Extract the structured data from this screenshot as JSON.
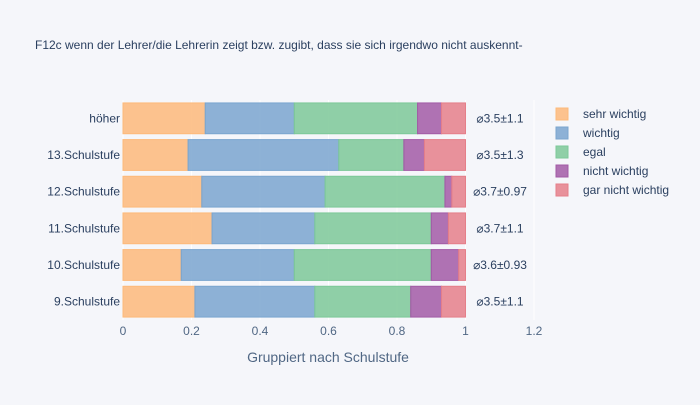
{
  "chart_data": {
    "type": "bar",
    "orientation": "horizontal",
    "barmode": "stack",
    "title": "F12c wenn der Lehrer/die Lehrerin zeigt bzw. zugibt, dass sie sich irgendwo nicht auskennt-",
    "xlabel": "Gruppiert nach Schulstufe",
    "ylabel": "",
    "xlim": [
      0,
      1.2
    ],
    "xticks": [
      0,
      0.2,
      0.4,
      0.6,
      0.8,
      1,
      1.2
    ],
    "xtick_labels": [
      "0",
      "0.2",
      "0.4",
      "0.6",
      "0.8",
      "1",
      "1.2"
    ],
    "grid": true,
    "legend_position": "right",
    "categories": [
      "höher",
      "13.Schulstufe",
      "12.Schulstufe",
      "11.Schulstufe",
      "10.Schulstufe",
      "9.Schulstufe"
    ],
    "series": [
      {
        "name": "sehr wichtig",
        "color": "#fdb97a",
        "values": [
          0.24,
          0.19,
          0.23,
          0.26,
          0.17,
          0.21
        ]
      },
      {
        "name": "wichtig",
        "color": "#7aa5cf",
        "values": [
          0.26,
          0.44,
          0.36,
          0.3,
          0.33,
          0.35
        ]
      },
      {
        "name": "egal",
        "color": "#7cc898",
        "values": [
          0.36,
          0.19,
          0.35,
          0.34,
          0.4,
          0.28
        ]
      },
      {
        "name": "nicht wichtig",
        "color": "#a25aa6",
        "values": [
          0.07,
          0.06,
          0.02,
          0.05,
          0.08,
          0.09
        ]
      },
      {
        "name": "gar nicht wichtig",
        "color": "#e57f89",
        "values": [
          0.07,
          0.12,
          0.04,
          0.05,
          0.02,
          0.07
        ]
      }
    ],
    "annotations": [
      "⌀3.5±1.1",
      "⌀3.5±1.3",
      "⌀3.7±0.97",
      "⌀3.7±1.1",
      "⌀3.6±0.93",
      "⌀3.5±1.1"
    ]
  }
}
